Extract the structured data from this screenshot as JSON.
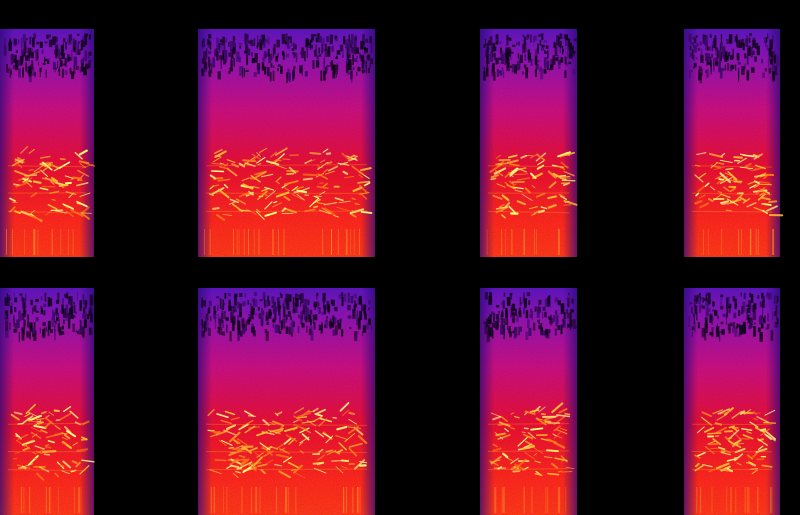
{
  "image": {
    "subject": "spectrogram-grid",
    "grid": {
      "rows": 2,
      "columns": 4
    },
    "colors": {
      "background": "#000000",
      "colormap": [
        "#000000",
        "#2a0a7a",
        "#6a18c8",
        "#b01080",
        "#e0102a",
        "#ff3a10",
        "#ffb020",
        "#ffff70"
      ]
    },
    "panels": [
      {
        "row": 1,
        "column": 1,
        "variant": "narrow-left"
      },
      {
        "row": 1,
        "column": 2,
        "variant": "wide"
      },
      {
        "row": 1,
        "column": 3,
        "variant": "narrow-mid"
      },
      {
        "row": 1,
        "column": 4,
        "variant": "narrow-right"
      },
      {
        "row": 2,
        "column": 1,
        "variant": "narrow-left"
      },
      {
        "row": 2,
        "column": 2,
        "variant": "wide"
      },
      {
        "row": 2,
        "column": 3,
        "variant": "narrow-mid"
      },
      {
        "row": 2,
        "column": 4,
        "variant": "narrow-right"
      }
    ]
  }
}
